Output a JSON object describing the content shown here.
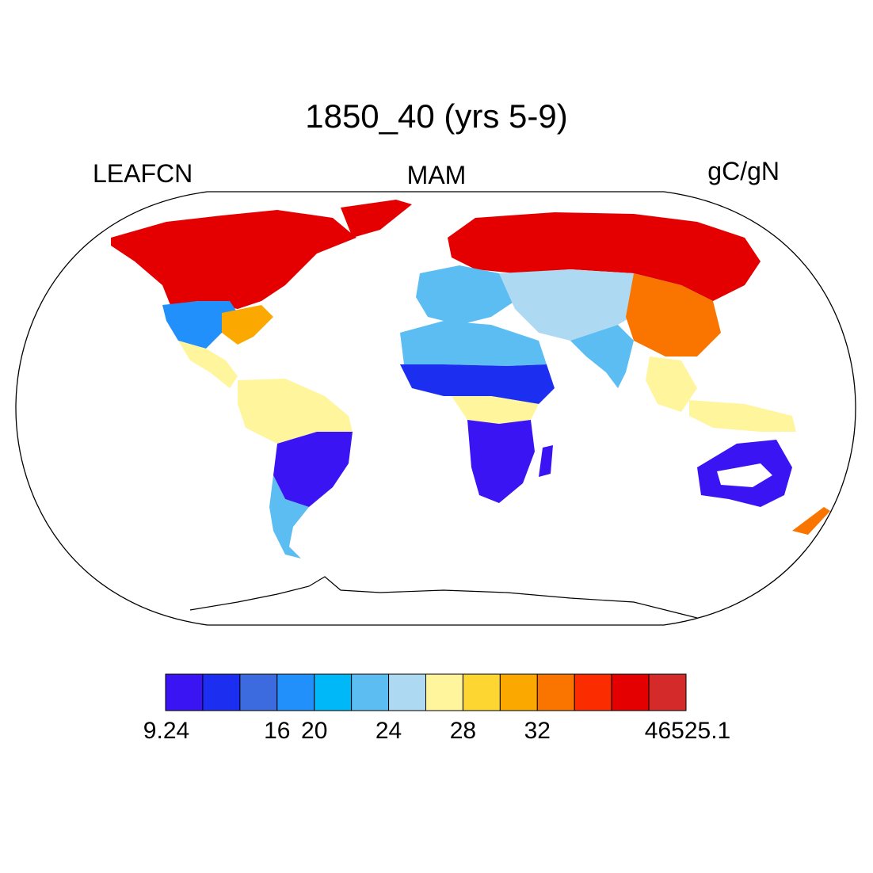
{
  "title": "1850_40 (yrs 5-9)",
  "left_label": "LEAFCN",
  "center_label": "MAM",
  "right_label": "gC/gN",
  "colorbar": {
    "colors": [
      "#3a14f2",
      "#1c2ef0",
      "#3c6be0",
      "#2290fb",
      "#00b8f7",
      "#5cbdf2",
      "#add9f2",
      "#fff59c",
      "#fdd632",
      "#fba900",
      "#fa7500",
      "#fa2c00",
      "#e40000",
      "#d42a2a"
    ],
    "tick_labels": [
      "9.24",
      "16",
      "20",
      "24",
      "28",
      "32",
      "46525.1"
    ]
  },
  "legend_colors": {
    "ocean": "#ffffff",
    "coastline": "#000000",
    "low": "#3a14f2",
    "high": "#d42a2a"
  }
}
